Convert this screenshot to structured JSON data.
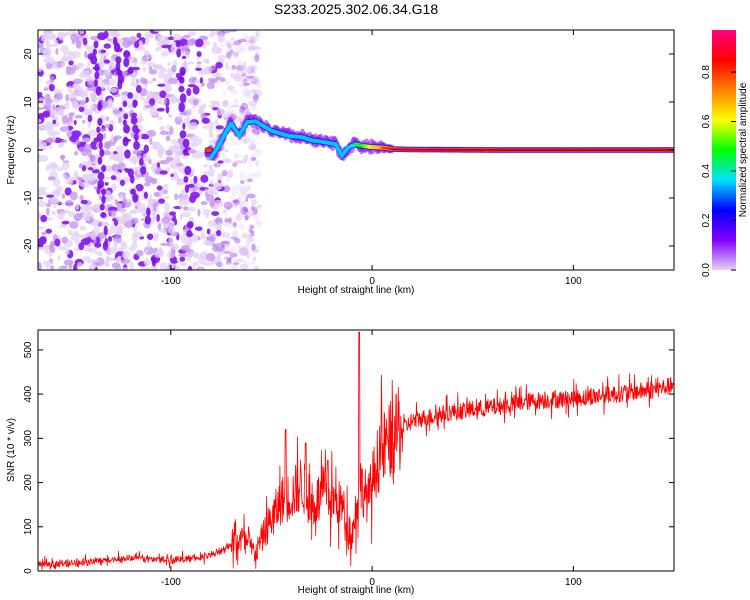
{
  "title": "S233.2025.302.06.34.G18",
  "chart_data": [
    {
      "type": "heatmap",
      "title": "S233.2025.302.06.34.G18",
      "xlabel": "Height of straight line (km)",
      "ylabel": "Frequency (Hz)",
      "xlim": [
        -166,
        150
      ],
      "ylim": [
        -25,
        25
      ],
      "xticks": [
        -100,
        0,
        100
      ],
      "yticks": [
        -20,
        -10,
        0,
        10,
        20
      ],
      "colorbar": {
        "label": "Normalized spectral amplitude",
        "range": [
          0,
          0.97
        ],
        "ticks": [
          "0.0",
          "0.2",
          "0.4",
          "0.6",
          "0.8"
        ],
        "tick_values": [
          0,
          0.2,
          0.4,
          0.6,
          0.8
        ],
        "colors": [
          "#e8d0f8",
          "#8000ff",
          "#0000ff",
          "#00e0ff",
          "#00ff00",
          "#ffff00",
          "#ff8000",
          "#ff0000",
          "#ff0080"
        ]
      },
      "ridge": {
        "description": "dominant frequency track vs height",
        "x": [
          -80,
          -76,
          -73,
          -70,
          -66,
          -62,
          -58,
          -54,
          -50,
          -46,
          -42,
          -38,
          -34,
          -30,
          -26,
          -22,
          -18,
          -15,
          -12,
          -8,
          -4,
          0,
          5,
          10,
          20,
          40,
          60,
          80,
          100,
          120,
          150
        ],
        "y": [
          -1.5,
          1,
          3.5,
          5.5,
          3,
          5.8,
          6,
          5,
          4,
          3.5,
          3,
          2.8,
          2.6,
          2,
          1.8,
          1.5,
          1.2,
          -1.2,
          0.5,
          1.2,
          0.8,
          0.6,
          0.5,
          0.2,
          0.1,
          0.05,
          0,
          0,
          0,
          0,
          0
        ],
        "amplitude": [
          0.05,
          0.1,
          0.15,
          0.2,
          0.25,
          0.3,
          0.3,
          0.3,
          0.35,
          0.3,
          0.3,
          0.3,
          0.35,
          0.35,
          0.4,
          0.4,
          0.3,
          0.25,
          0.35,
          0.5,
          0.6,
          0.75,
          0.8,
          0.85,
          0.9,
          0.92,
          0.93,
          0.93,
          0.93,
          0.93,
          0.93
        ]
      },
      "noise_region_x": [
        -166,
        -62
      ]
    },
    {
      "type": "line",
      "xlabel": "Height of straight line (km)",
      "ylabel": "SNR (10 * v/v)",
      "xlim": [
        -166,
        150
      ],
      "ylim": [
        0,
        545
      ],
      "xticks": [
        -100,
        0,
        100
      ],
      "yticks": [
        0,
        100,
        200,
        300,
        400,
        500
      ],
      "series": [
        {
          "name": "SNR",
          "color": "#ff0000",
          "x": [
            -166,
            -140,
            -120,
            -100,
            -85,
            -75,
            -65,
            -58,
            -52,
            -45,
            -40,
            -35,
            -30,
            -25,
            -20,
            -15,
            -10,
            -6,
            -2,
            2,
            6,
            10,
            15,
            20,
            30,
            40,
            50,
            60,
            80,
            100,
            120,
            140,
            150
          ],
          "y": [
            15,
            20,
            30,
            25,
            30,
            45,
            75,
            40,
            100,
            160,
            170,
            200,
            140,
            180,
            160,
            150,
            80,
            200,
            160,
            240,
            280,
            300,
            320,
            340,
            350,
            360,
            365,
            370,
            385,
            390,
            400,
            410,
            420
          ],
          "spikes": [
            {
              "x": -43,
              "y": 320
            },
            {
              "x": -33,
              "y": 290
            },
            {
              "x": -22,
              "y": 250
            },
            {
              "x": -6.5,
              "y": 540
            }
          ]
        }
      ]
    }
  ],
  "axes_labels": {
    "top_x": "Height of straight line (km)",
    "top_y": "Frequency (Hz)",
    "bottom_x": "Height of straight line (km)",
    "bottom_y": "SNR (10 * v/v)",
    "colorbar": "Normalized spectral amplitude"
  },
  "tick_labels": {
    "x": [
      "-100",
      "0",
      "100"
    ],
    "top_y": [
      "-20",
      "-10",
      "0",
      "10",
      "20"
    ],
    "bottom_y": [
      "0",
      "100",
      "200",
      "300",
      "400",
      "500"
    ]
  }
}
